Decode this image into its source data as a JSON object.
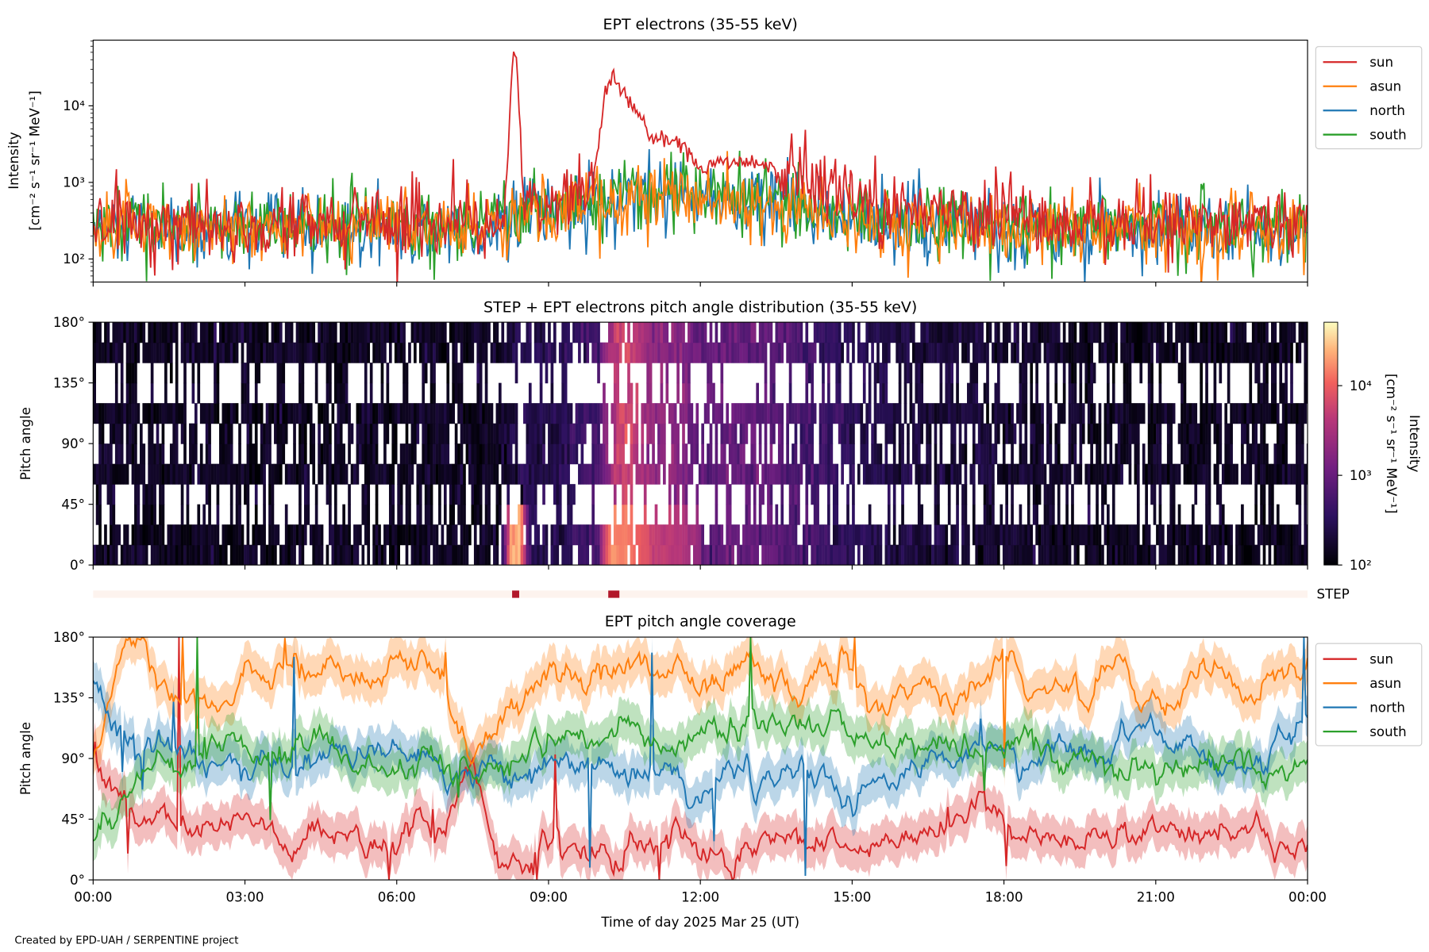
{
  "footer": "Created by EPD-UAH / SERPENTINE project",
  "chart_data": [
    {
      "type": "line",
      "title": "EPT electrons (35-55 keV)",
      "ylabel": [
        "Intensity",
        "[cm⁻² s⁻¹ sr⁻¹ MeV⁻¹]"
      ],
      "yscale": "log",
      "ylim": [
        50,
        72000
      ],
      "yticks": [
        {
          "value": 100,
          "label": "10²"
        },
        {
          "value": 1000,
          "label": "10³"
        },
        {
          "value": 10000,
          "label": "10⁴"
        }
      ],
      "x_hours_step": 0.5,
      "legend": {
        "placement": "outside-right",
        "entries": [
          "sun",
          "asun",
          "north",
          "south"
        ]
      },
      "series": [
        {
          "name": "sun",
          "color": "#d62728",
          "values": [
            300,
            300,
            300,
            300,
            300,
            300,
            300,
            300,
            300,
            300,
            300,
            300,
            300,
            300,
            300,
            300,
            300,
            600,
            500,
            700,
            1200,
            12000,
            4000,
            3500,
            1500,
            2000,
            1800,
            1500,
            1000,
            800,
            600,
            500,
            450,
            400,
            400,
            380,
            350,
            350,
            330,
            300,
            300,
            300,
            300,
            300,
            300,
            300,
            300,
            300,
            300
          ],
          "peaks": [
            {
              "hour": 8.33,
              "value": 50000
            },
            {
              "hour": 10.25,
              "value": 16000
            }
          ]
        },
        {
          "name": "asun",
          "color": "#ff7f0e",
          "values": [
            250,
            250,
            250,
            250,
            250,
            250,
            250,
            250,
            250,
            250,
            250,
            250,
            250,
            250,
            250,
            250,
            250,
            400,
            400,
            450,
            500,
            550,
            600,
            600,
            650,
            600,
            550,
            500,
            450,
            400,
            350,
            300,
            300,
            280,
            280,
            260,
            260,
            250,
            250,
            250,
            250,
            250,
            250,
            250,
            250,
            250,
            250,
            250,
            250
          ]
        },
        {
          "name": "north",
          "color": "#1f77b4",
          "values": [
            230,
            230,
            230,
            230,
            230,
            230,
            230,
            230,
            230,
            230,
            230,
            230,
            230,
            230,
            230,
            230,
            230,
            380,
            400,
            450,
            500,
            550,
            650,
            650,
            700,
            600,
            550,
            500,
            450,
            400,
            350,
            300,
            300,
            280,
            270,
            260,
            250,
            240,
            240,
            230,
            230,
            230,
            230,
            230,
            230,
            230,
            230,
            230,
            230
          ]
        },
        {
          "name": "south",
          "color": "#2ca02c",
          "values": [
            280,
            280,
            280,
            280,
            280,
            280,
            280,
            280,
            280,
            280,
            280,
            280,
            280,
            280,
            280,
            280,
            280,
            420,
            450,
            500,
            550,
            600,
            700,
            700,
            750,
            650,
            600,
            550,
            500,
            450,
            400,
            350,
            330,
            320,
            310,
            300,
            300,
            290,
            290,
            280,
            280,
            280,
            280,
            280,
            280,
            280,
            280,
            280,
            280
          ]
        }
      ]
    },
    {
      "type": "heatmap",
      "title": "STEP + EPT electrons pitch angle distribution (35-55 keV)",
      "ylabel": "Pitch angle",
      "ylim": [
        0,
        180
      ],
      "yticks": [
        "0°",
        "45°",
        "90°",
        "135°",
        "180°"
      ],
      "colorbar": {
        "label": [
          "Intensity",
          "[cm⁻² s⁻¹ sr⁻¹ MeV⁻¹]"
        ],
        "scale": "log",
        "range": [
          100,
          51000
        ],
        "ticks": [
          {
            "value": 100,
            "label": "10²"
          },
          {
            "value": 1000,
            "label": "10³"
          },
          {
            "value": 10000,
            "label": "10⁴"
          }
        ]
      }
    },
    {
      "type": "bar",
      "label": "STEP",
      "markers_hours": [
        {
          "start": 8.28,
          "end": 8.42
        },
        {
          "start": 10.18,
          "end": 10.4
        }
      ],
      "background_color": "#fdf3ee",
      "marker_color": "#b2182b"
    },
    {
      "type": "line",
      "title": "EPT pitch angle coverage",
      "ylabel": "Pitch angle",
      "ylim": [
        0,
        180
      ],
      "yticks": [
        {
          "value": 0,
          "label": "0°"
        },
        {
          "value": 45,
          "label": "45°"
        },
        {
          "value": 90,
          "label": "90°"
        },
        {
          "value": 135,
          "label": "135°"
        },
        {
          "value": 180,
          "label": "180°"
        }
      ],
      "xlabel": "Time of day 2025 Mar 25 (UT)",
      "xticks": [
        "00:00",
        "03:00",
        "06:00",
        "09:00",
        "12:00",
        "15:00",
        "18:00",
        "21:00",
        "00:00"
      ],
      "x_hours_step": 0.5,
      "legend": {
        "placement": "outside-right",
        "entries": [
          "sun",
          "asun",
          "north",
          "south"
        ]
      },
      "series": [
        {
          "name": "sun",
          "color": "#d62728",
          "values": [
            90,
            60,
            40,
            50,
            30,
            35,
            40,
            30,
            25,
            30,
            35,
            30,
            25,
            30,
            40,
            90,
            30,
            20,
            25,
            20,
            25,
            20,
            25,
            30,
            25,
            20,
            30,
            25,
            30,
            30,
            20,
            25,
            30,
            40,
            30,
            60,
            40,
            35,
            30,
            30,
            40,
            35,
            30,
            40,
            35,
            30,
            30,
            25,
            20
          ]
        },
        {
          "name": "asun",
          "color": "#ff7f0e",
          "values": [
            90,
            150,
            160,
            130,
            140,
            130,
            160,
            150,
            165,
            160,
            150,
            155,
            160,
            150,
            140,
            100,
            120,
            140,
            160,
            150,
            160,
            155,
            150,
            160,
            150,
            155,
            165,
            150,
            140,
            160,
            150,
            130,
            140,
            150,
            120,
            140,
            160,
            155,
            150,
            130,
            160,
            150,
            140,
            145,
            160,
            150,
            140,
            150,
            160
          ]
        },
        {
          "name": "north",
          "color": "#1f77b4",
          "values": [
            150,
            110,
            100,
            95,
            90,
            80,
            85,
            90,
            95,
            90,
            95,
            90,
            100,
            95,
            90,
            85,
            90,
            85,
            90,
            85,
            80,
            75,
            80,
            75,
            70,
            80,
            75,
            70,
            85,
            75,
            60,
            85,
            80,
            85,
            90,
            90,
            85,
            90,
            100,
            95,
            90,
            100,
            110,
            100,
            95,
            90,
            100,
            110,
            120
          ]
        },
        {
          "name": "south",
          "color": "#2ca02c",
          "values": [
            30,
            60,
            80,
            90,
            85,
            100,
            95,
            90,
            95,
            100,
            90,
            95,
            85,
            90,
            85,
            80,
            90,
            95,
            100,
            95,
            100,
            110,
            105,
            100,
            110,
            105,
            115,
            100,
            110,
            115,
            100,
            95,
            90,
            95,
            100,
            90,
            90,
            100,
            85,
            80,
            90,
            85,
            80,
            85,
            90,
            80,
            85,
            80,
            75
          ]
        }
      ]
    }
  ]
}
